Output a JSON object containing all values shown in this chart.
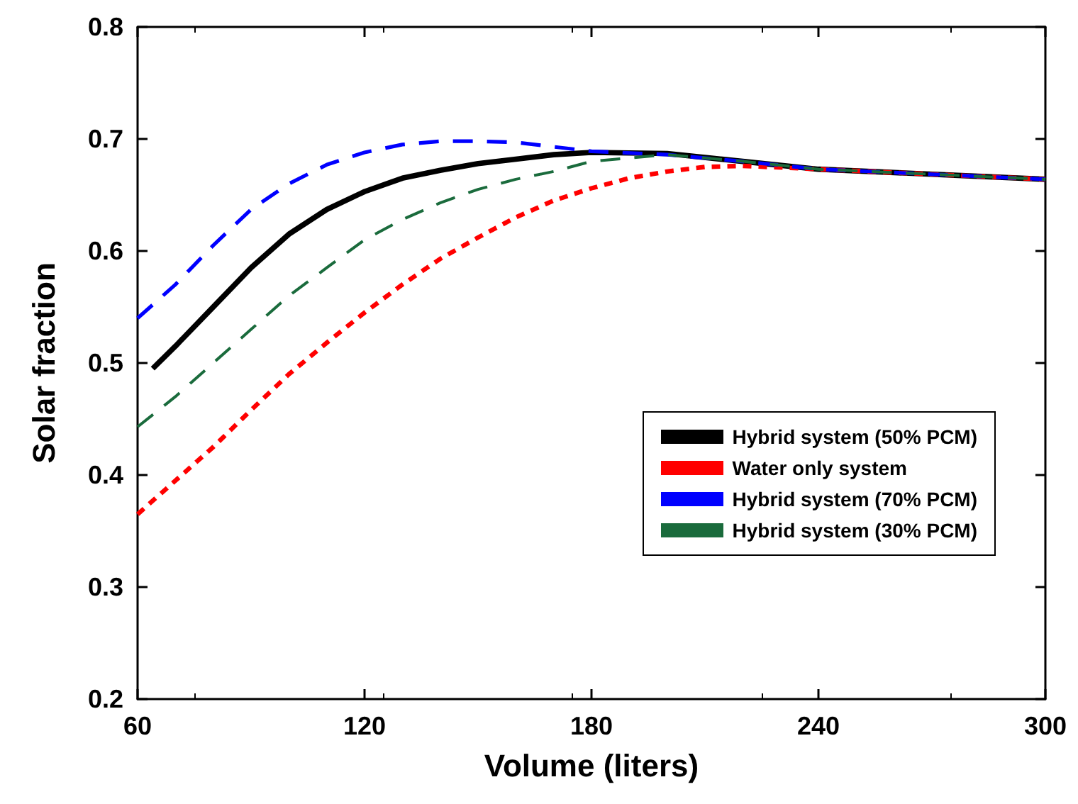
{
  "chart_data": {
    "type": "line",
    "xlabel": "Volume (liters)",
    "ylabel": "Solar fraction",
    "xlim": [
      60,
      300
    ],
    "xticks": [
      60,
      120,
      180,
      240,
      300
    ],
    "ylim": [
      0.2,
      0.8
    ],
    "yticks": [
      0.2,
      0.3,
      0.4,
      0.5,
      0.6,
      0.7,
      0.8
    ],
    "grid": false,
    "legend": "right",
    "marker": "none",
    "series": [
      {
        "name": "Hybrid system (50% PCM)",
        "color": "#000000",
        "line_style": "solid",
        "x": [
          64,
          70,
          80,
          90,
          100,
          110,
          120,
          130,
          140,
          150,
          160,
          170,
          180,
          200,
          220,
          240,
          260,
          280,
          300
        ],
        "values": [
          0.495,
          0.515,
          0.55,
          0.585,
          0.615,
          0.637,
          0.653,
          0.665,
          0.672,
          0.678,
          0.682,
          0.686,
          0.688,
          0.687,
          0.68,
          0.673,
          0.67,
          0.667,
          0.664
        ]
      },
      {
        "name": "Water only system",
        "color": "#ff0000",
        "line_style": "dotted",
        "x": [
          60,
          70,
          80,
          90,
          100,
          110,
          120,
          130,
          140,
          150,
          160,
          170,
          180,
          190,
          200,
          210,
          220,
          240,
          260,
          280,
          300
        ],
        "values": [
          0.365,
          0.395,
          0.425,
          0.458,
          0.49,
          0.518,
          0.545,
          0.57,
          0.593,
          0.612,
          0.63,
          0.645,
          0.656,
          0.665,
          0.671,
          0.675,
          0.676,
          0.673,
          0.67,
          0.667,
          0.664
        ]
      },
      {
        "name": "Hybrid system (70% PCM)",
        "color": "#0000ff",
        "line_style": "dashed",
        "x": [
          60,
          70,
          80,
          90,
          100,
          110,
          120,
          130,
          140,
          150,
          160,
          170,
          180,
          200,
          220,
          240,
          260,
          280,
          300
        ],
        "values": [
          0.54,
          0.57,
          0.605,
          0.637,
          0.66,
          0.677,
          0.688,
          0.695,
          0.698,
          0.698,
          0.697,
          0.693,
          0.689,
          0.686,
          0.68,
          0.673,
          0.67,
          0.667,
          0.664
        ]
      },
      {
        "name": "Hybrid system (30% PCM)",
        "color": "#1a6b3c",
        "line_style": "dashed",
        "x": [
          60,
          70,
          80,
          90,
          100,
          110,
          120,
          130,
          140,
          150,
          160,
          170,
          180,
          200,
          220,
          240,
          260,
          280,
          300
        ],
        "values": [
          0.443,
          0.47,
          0.5,
          0.53,
          0.56,
          0.585,
          0.61,
          0.628,
          0.643,
          0.655,
          0.664,
          0.671,
          0.68,
          0.686,
          0.68,
          0.673,
          0.67,
          0.667,
          0.664
        ]
      }
    ]
  }
}
